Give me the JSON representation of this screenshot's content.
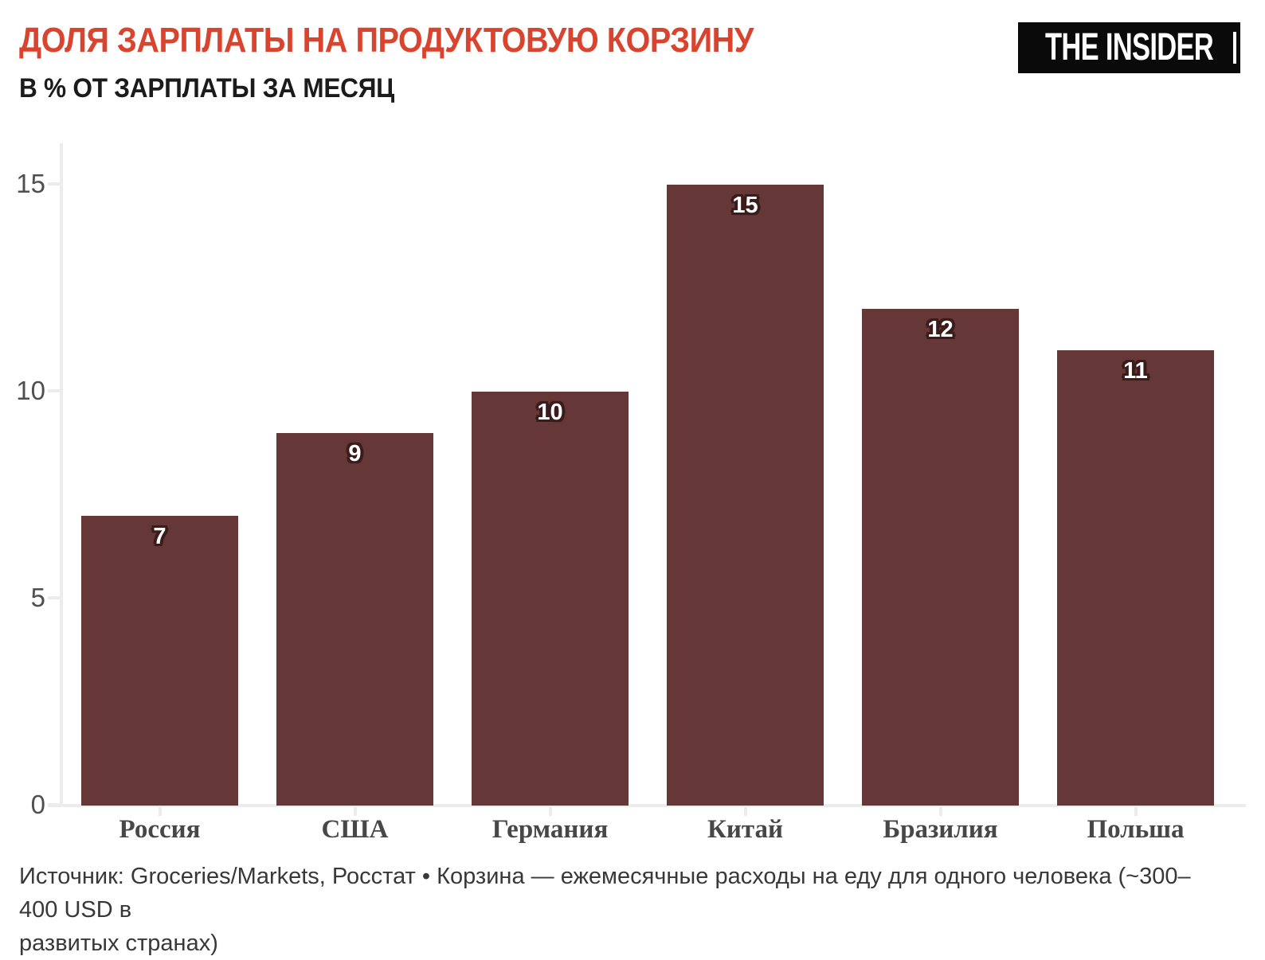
{
  "header": {
    "title": "ДОЛЯ ЗАРПЛАТЫ НА ПРОДУКТОВУЮ КОРЗИНУ",
    "subtitle": "В % ОТ ЗАРПЛАТЫ ЗА МЕСЯЦ",
    "logo_text": "THE INSIDER"
  },
  "chart_data": {
    "type": "bar",
    "title": "ДОЛЯ ЗАРПЛАТЫ НА ПРОДУКТОВУЮ КОРЗИНУ",
    "subtitle": "В % ОТ ЗАРПЛАТЫ ЗА МЕСЯЦ",
    "categories": [
      "Россия",
      "США",
      "Германия",
      "Китай",
      "Бразилия",
      "Польша"
    ],
    "values": [
      7,
      9,
      10,
      15,
      12,
      11
    ],
    "value_labels": [
      "7",
      "9",
      "10",
      "15",
      "12",
      "11"
    ],
    "xlabel": "",
    "ylabel": "",
    "ylim": [
      0,
      15
    ],
    "yticks": [
      0,
      5,
      10,
      15
    ],
    "grid": false,
    "legend": false,
    "colors": {
      "bar": "#653736",
      "value_label_text": "#ffffff",
      "value_label_halo": "#3a1c1b",
      "axis": "#ececec",
      "tick_label": "#4f4f4f",
      "category_label": "#474747",
      "title_accent": "#D9442F"
    }
  },
  "footer": {
    "source": "Источник: Groceries/Markets, Росстат • Корзина — ежемесячные расходы на еду для одного человека (~300–400 USD в\nразвитых странах)"
  }
}
